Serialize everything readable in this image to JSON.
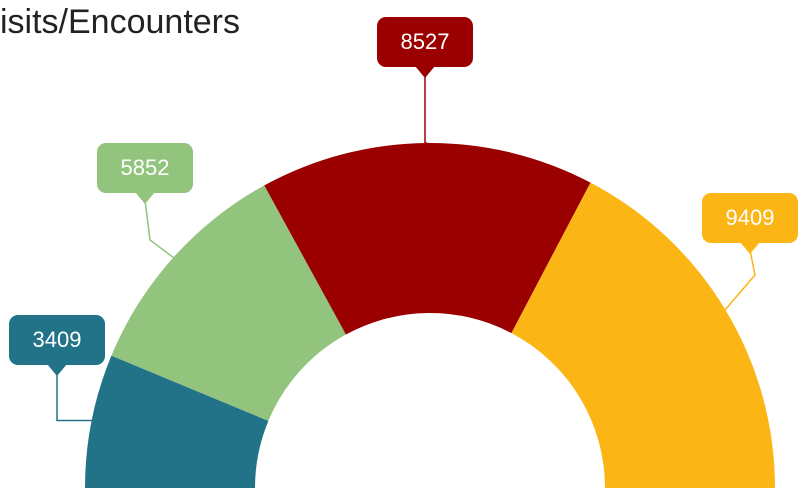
{
  "chart_data": {
    "type": "pie",
    "title": "isits/Encounters",
    "categories": [
      null,
      null,
      null,
      null
    ],
    "values": [
      3409,
      5852,
      8527,
      9409
    ],
    "colors": [
      "#237388",
      "#93c47d",
      "#9a0000",
      "#fbb514"
    ]
  }
}
